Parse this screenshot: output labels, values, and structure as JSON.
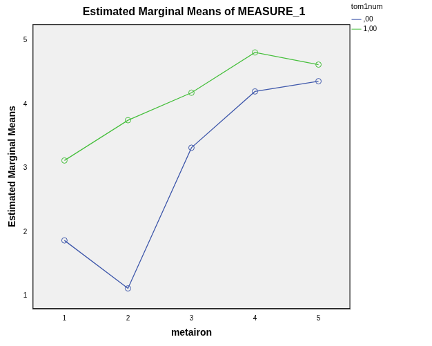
{
  "chart_data": {
    "type": "line",
    "title": "Estimated Marginal Means of MEASURE_1",
    "x_label": "metairon",
    "y_label": "Estimated Marginal Means",
    "legend_title": "tom1num",
    "categories": [
      "1",
      "2",
      "3",
      "4",
      "5"
    ],
    "series": [
      {
        "name": ",00",
        "color": "#3f58ab",
        "values": [
          1.87,
          1.12,
          3.32,
          4.2,
          4.36
        ]
      },
      {
        "name": "1,00",
        "color": "#46bf3c",
        "values": [
          3.12,
          3.75,
          4.18,
          4.81,
          4.62
        ]
      }
    ],
    "ylim": [
      0.8,
      5.25
    ],
    "yticks": [
      1,
      2,
      3,
      4,
      5
    ],
    "grid": false,
    "legend": "right",
    "marker": "circle"
  }
}
